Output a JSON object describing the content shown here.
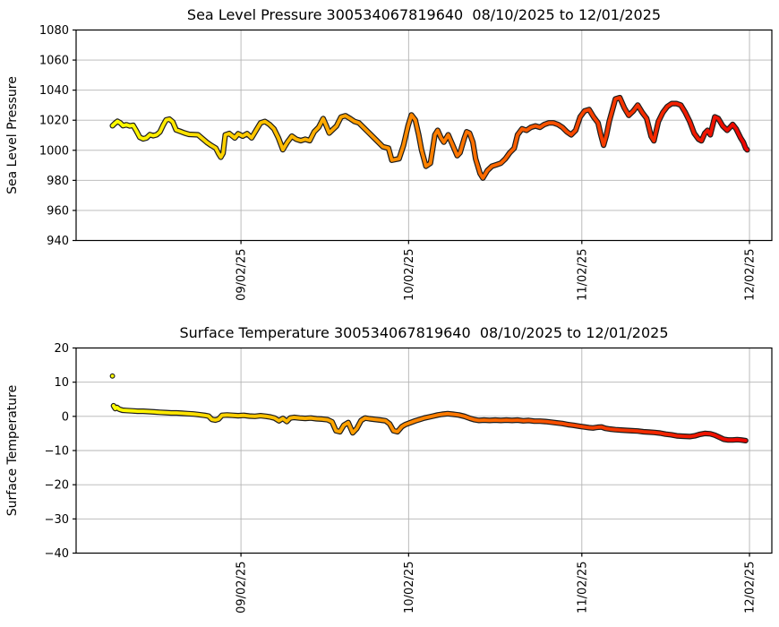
{
  "figure": {
    "background": "#ffffff",
    "grid_color": "#b4b4b4",
    "spine_color": "#000000",
    "marker_edge_color": "#1c1c1c"
  },
  "chart_data": [
    {
      "type": "scatter",
      "series_name": "sea-level-pressure-series",
      "title": "Sea Level Pressure 300534067819640  08/10/2025 to 12/01/2025",
      "ylabel": "Sea Level Pressure",
      "ylim": [
        940,
        1080
      ],
      "yticks": [
        940,
        960,
        980,
        1000,
        1020,
        1040,
        1060,
        1080
      ],
      "x_domain_days": [
        -6.5,
        118
      ],
      "xticks": [
        {
          "day": 23,
          "label": "09/02/25"
        },
        {
          "day": 53,
          "label": "10/02/25"
        },
        {
          "day": 84,
          "label": "11/02/25"
        },
        {
          "day": 114,
          "label": "12/02/25"
        }
      ],
      "grid": true,
      "legend": "none",
      "colormap": {
        "name": "autumn_r",
        "stops": [
          [
            0,
            "#ffff00"
          ],
          [
            0.5,
            "#ff8000"
          ],
          [
            1,
            "#ee0400"
          ]
        ]
      },
      "points": [
        [
          0,
          1016.3
        ],
        [
          0.4,
          1017.8
        ],
        [
          0.9,
          1019.3
        ],
        [
          1.4,
          1018.2
        ],
        [
          1.9,
          1016.4
        ],
        [
          2.5,
          1017.0
        ],
        [
          3.1,
          1016.2
        ],
        [
          3.7,
          1016.6
        ],
        [
          4.3,
          1012.8
        ],
        [
          4.9,
          1008.6
        ],
        [
          5.5,
          1007.6
        ],
        [
          6.1,
          1008.2
        ],
        [
          6.7,
          1010.4
        ],
        [
          7.3,
          1009.7
        ],
        [
          7.9,
          1010.3
        ],
        [
          8.5,
          1012.2
        ],
        [
          9.1,
          1017.0
        ],
        [
          9.6,
          1020.2
        ],
        [
          10.2,
          1020.7
        ],
        [
          10.8,
          1018.8
        ],
        [
          11.4,
          1013.6
        ],
        [
          12.1,
          1012.6
        ],
        [
          12.9,
          1011.5
        ],
        [
          13.7,
          1010.6
        ],
        [
          15.3,
          1010.3
        ],
        [
          16.9,
          1005.3
        ],
        [
          17.7,
          1003.2
        ],
        [
          18.5,
          1001.4
        ],
        [
          19.0,
          997.8
        ],
        [
          19.4,
          995.4
        ],
        [
          19.8,
          998.0
        ],
        [
          20.2,
          1010.3
        ],
        [
          20.9,
          1011.2
        ],
        [
          21.9,
          1008.2
        ],
        [
          22.5,
          1011.0
        ],
        [
          23.3,
          1009.4
        ],
        [
          24.1,
          1011.1
        ],
        [
          24.9,
          1008.3
        ],
        [
          25.7,
          1013.3
        ],
        [
          26.5,
          1018.2
        ],
        [
          27.3,
          1019.2
        ],
        [
          28.1,
          1017.2
        ],
        [
          28.9,
          1014.3
        ],
        [
          29.7,
          1008.3
        ],
        [
          30.5,
          1000.4
        ],
        [
          31.3,
          1005.4
        ],
        [
          32.1,
          1009.4
        ],
        [
          32.9,
          1007.4
        ],
        [
          33.7,
          1006.4
        ],
        [
          34.5,
          1007.4
        ],
        [
          35.3,
          1006.4
        ],
        [
          36.1,
          1012.3
        ],
        [
          36.9,
          1015.3
        ],
        [
          37.7,
          1021.1
        ],
        [
          38.3,
          1016.0
        ],
        [
          38.8,
          1011.5
        ],
        [
          39.3,
          1013.3
        ],
        [
          40.1,
          1016.1
        ],
        [
          40.9,
          1022.1
        ],
        [
          41.7,
          1023.0
        ],
        [
          42.5,
          1021.2
        ],
        [
          43.3,
          1019.2
        ],
        [
          44.1,
          1018.2
        ],
        [
          45.7,
          1012.3
        ],
        [
          47.3,
          1006.4
        ],
        [
          48.4,
          1002.4
        ],
        [
          49.4,
          1001.4
        ],
        [
          50.0,
          993.4
        ],
        [
          51.3,
          994.4
        ],
        [
          52.1,
          1003.4
        ],
        [
          52.9,
          1016.2
        ],
        [
          53.5,
          1023.5
        ],
        [
          54.2,
          1020.2
        ],
        [
          54.8,
          1010.3
        ],
        [
          55.3,
          1000.4
        ],
        [
          56.1,
          989.4
        ],
        [
          56.9,
          991.4
        ],
        [
          57.7,
          1010.3
        ],
        [
          58.2,
          1013.3
        ],
        [
          58.8,
          1008.3
        ],
        [
          59.3,
          1005.4
        ],
        [
          60.1,
          1010.3
        ],
        [
          60.9,
          1003.4
        ],
        [
          61.7,
          996.4
        ],
        [
          62.2,
          998.4
        ],
        [
          63.0,
          1008.3
        ],
        [
          63.4,
          1012.3
        ],
        [
          63.9,
          1011.4
        ],
        [
          64.5,
          1005.4
        ],
        [
          65.0,
          994.3
        ],
        [
          65.8,
          984.5
        ],
        [
          66.3,
          981.5
        ],
        [
          67.1,
          986.5
        ],
        [
          67.9,
          989.4
        ],
        [
          68.7,
          990.4
        ],
        [
          69.5,
          991.4
        ],
        [
          70.3,
          994.3
        ],
        [
          71.1,
          998.4
        ],
        [
          71.9,
          1001.4
        ],
        [
          72.5,
          1010.3
        ],
        [
          73.3,
          1014.3
        ],
        [
          74.1,
          1013.3
        ],
        [
          74.9,
          1015.3
        ],
        [
          75.7,
          1016.2
        ],
        [
          76.5,
          1015.3
        ],
        [
          77.3,
          1017.2
        ],
        [
          78.1,
          1018.2
        ],
        [
          78.9,
          1018.2
        ],
        [
          79.7,
          1017.2
        ],
        [
          80.5,
          1015.3
        ],
        [
          81.3,
          1012.3
        ],
        [
          82.1,
          1010.3
        ],
        [
          82.9,
          1013.3
        ],
        [
          83.7,
          1022.2
        ],
        [
          84.5,
          1026.2
        ],
        [
          85.3,
          1027.1
        ],
        [
          86.1,
          1022.2
        ],
        [
          86.9,
          1018.2
        ],
        [
          87.4,
          1010.3
        ],
        [
          87.9,
          1003.4
        ],
        [
          88.4,
          1010.1
        ],
        [
          88.9,
          1019.2
        ],
        [
          90.0,
          1034.1
        ],
        [
          90.8,
          1035.0
        ],
        [
          91.6,
          1028.2
        ],
        [
          92.4,
          1023.2
        ],
        [
          93.2,
          1026.1
        ],
        [
          94.0,
          1030.1
        ],
        [
          94.8,
          1025.2
        ],
        [
          95.6,
          1021.2
        ],
        [
          96.4,
          1009.3
        ],
        [
          96.9,
          1006.3
        ],
        [
          97.7,
          1019.2
        ],
        [
          98.5,
          1025.2
        ],
        [
          99.3,
          1029.1
        ],
        [
          100.1,
          1031.1
        ],
        [
          100.9,
          1031.1
        ],
        [
          101.7,
          1030.1
        ],
        [
          102.5,
          1025.2
        ],
        [
          103.3,
          1019.2
        ],
        [
          104.1,
          1011.3
        ],
        [
          104.9,
          1007.3
        ],
        [
          105.4,
          1006.3
        ],
        [
          106.0,
          1011.3
        ],
        [
          106.5,
          1013.3
        ],
        [
          107.0,
          1010.3
        ],
        [
          107.8,
          1022.2
        ],
        [
          108.4,
          1021.2
        ],
        [
          109.2,
          1016.2
        ],
        [
          110.0,
          1013.3
        ],
        [
          110.5,
          1015.2
        ],
        [
          111.0,
          1017.2
        ],
        [
          111.6,
          1014.3
        ],
        [
          112.4,
          1008.3
        ],
        [
          112.9,
          1005.3
        ],
        [
          113.3,
          1001.5
        ],
        [
          113.6,
          1000.3
        ]
      ],
      "outliers": []
    },
    {
      "type": "scatter",
      "series_name": "surface-temperature-series",
      "title": "Surface Temperature 300534067819640  08/10/2025 to 12/01/2025",
      "ylabel": "Surface Temperature",
      "ylim": [
        -40,
        20
      ],
      "yticks": [
        -40,
        -30,
        -20,
        -10,
        0,
        10,
        20
      ],
      "x_domain_days": [
        -6.5,
        118
      ],
      "xticks": [
        {
          "day": 23,
          "label": "09/02/25"
        },
        {
          "day": 53,
          "label": "10/02/25"
        },
        {
          "day": 84,
          "label": "11/02/25"
        },
        {
          "day": 114,
          "label": "12/02/25"
        }
      ],
      "grid": true,
      "legend": "none",
      "colormap": {
        "name": "autumn_r",
        "stops": [
          [
            0,
            "#ffff00"
          ],
          [
            0.5,
            "#ff8000"
          ],
          [
            1,
            "#ee0400"
          ]
        ]
      },
      "points": [
        [
          0.2,
          3.1
        ],
        [
          0.5,
          2.3
        ],
        [
          0.8,
          2.6
        ],
        [
          1.2,
          2.1
        ],
        [
          1.8,
          1.8
        ],
        [
          2.5,
          1.7
        ],
        [
          3.5,
          1.6
        ],
        [
          4.5,
          1.5
        ],
        [
          5.5,
          1.5
        ],
        [
          6.5,
          1.4
        ],
        [
          7.5,
          1.3
        ],
        [
          8.5,
          1.2
        ],
        [
          9.5,
          1.1
        ],
        [
          10.5,
          1.0
        ],
        [
          11.5,
          1.0
        ],
        [
          12.5,
          0.9
        ],
        [
          13.5,
          0.8
        ],
        [
          14.5,
          0.7
        ],
        [
          15.5,
          0.5
        ],
        [
          16.5,
          0.3
        ],
        [
          17.2,
          0.1
        ],
        [
          17.8,
          -0.9
        ],
        [
          18.4,
          -1.1
        ],
        [
          19.0,
          -0.8
        ],
        [
          19.6,
          0.3
        ],
        [
          20.5,
          0.4
        ],
        [
          21.5,
          0.3
        ],
        [
          22.5,
          0.2
        ],
        [
          23.5,
          0.3
        ],
        [
          24.5,
          0.1
        ],
        [
          25.5,
          0.0
        ],
        [
          26.5,
          0.2
        ],
        [
          27.5,
          0.0
        ],
        [
          28.3,
          -0.2
        ],
        [
          29.0,
          -0.5
        ],
        [
          29.8,
          -1.3
        ],
        [
          30.5,
          -0.6
        ],
        [
          31.2,
          -1.5
        ],
        [
          31.8,
          -0.5
        ],
        [
          32.5,
          -0.3
        ],
        [
          33.5,
          -0.5
        ],
        [
          34.5,
          -0.6
        ],
        [
          35.5,
          -0.5
        ],
        [
          36.5,
          -0.7
        ],
        [
          37.5,
          -0.8
        ],
        [
          38.5,
          -1.0
        ],
        [
          39.3,
          -1.6
        ],
        [
          40.0,
          -4.2
        ],
        [
          40.7,
          -4.5
        ],
        [
          41.4,
          -2.6
        ],
        [
          42.2,
          -1.8
        ],
        [
          43.0,
          -4.8
        ],
        [
          43.7,
          -3.6
        ],
        [
          44.5,
          -1.2
        ],
        [
          45.2,
          -0.5
        ],
        [
          46.0,
          -0.7
        ],
        [
          47.0,
          -0.9
        ],
        [
          48.0,
          -1.1
        ],
        [
          48.9,
          -1.3
        ],
        [
          49.6,
          -2.2
        ],
        [
          50.3,
          -4.2
        ],
        [
          51.0,
          -4.5
        ],
        [
          51.8,
          -3.0
        ],
        [
          52.4,
          -2.4
        ],
        [
          53.4,
          -1.8
        ],
        [
          54.2,
          -1.3
        ],
        [
          55.0,
          -0.9
        ],
        [
          55.8,
          -0.5
        ],
        [
          56.6,
          -0.2
        ],
        [
          57.4,
          0.1
        ],
        [
          58.2,
          0.4
        ],
        [
          59.0,
          0.6
        ],
        [
          60.0,
          0.8
        ],
        [
          61.0,
          0.6
        ],
        [
          62.0,
          0.4
        ],
        [
          63.0,
          0.0
        ],
        [
          64.0,
          -0.6
        ],
        [
          64.8,
          -1.0
        ],
        [
          65.6,
          -1.2
        ],
        [
          66.5,
          -1.1
        ],
        [
          67.5,
          -1.2
        ],
        [
          68.5,
          -1.1
        ],
        [
          69.5,
          -1.2
        ],
        [
          70.5,
          -1.1
        ],
        [
          71.5,
          -1.2
        ],
        [
          72.5,
          -1.1
        ],
        [
          73.5,
          -1.3
        ],
        [
          74.5,
          -1.2
        ],
        [
          75.5,
          -1.4
        ],
        [
          76.5,
          -1.4
        ],
        [
          77.5,
          -1.5
        ],
        [
          78.5,
          -1.7
        ],
        [
          79.5,
          -1.9
        ],
        [
          80.5,
          -2.1
        ],
        [
          81.5,
          -2.4
        ],
        [
          82.5,
          -2.6
        ],
        [
          83.6,
          -2.9
        ],
        [
          84.5,
          -3.1
        ],
        [
          85.3,
          -3.3
        ],
        [
          86.0,
          -3.4
        ],
        [
          86.8,
          -3.2
        ],
        [
          87.5,
          -3.1
        ],
        [
          88.2,
          -3.5
        ],
        [
          89.0,
          -3.7
        ],
        [
          90.0,
          -3.9
        ],
        [
          91.0,
          -4.0
        ],
        [
          92.0,
          -4.1
        ],
        [
          93.0,
          -4.2
        ],
        [
          94.0,
          -4.3
        ],
        [
          95.0,
          -4.5
        ],
        [
          96.0,
          -4.6
        ],
        [
          97.0,
          -4.7
        ],
        [
          98.0,
          -4.9
        ],
        [
          99.0,
          -5.2
        ],
        [
          100.0,
          -5.4
        ],
        [
          101.0,
          -5.7
        ],
        [
          102.0,
          -5.8
        ],
        [
          103.3,
          -5.9
        ],
        [
          104.2,
          -5.7
        ],
        [
          105.0,
          -5.3
        ],
        [
          106.0,
          -5.0
        ],
        [
          107.0,
          -5.1
        ],
        [
          107.8,
          -5.5
        ],
        [
          108.6,
          -6.1
        ],
        [
          109.4,
          -6.7
        ],
        [
          110.2,
          -6.9
        ],
        [
          111.0,
          -6.9
        ],
        [
          111.8,
          -6.8
        ],
        [
          112.5,
          -6.9
        ],
        [
          113.3,
          -7.1
        ]
      ],
      "outliers": [
        [
          0,
          11.8
        ]
      ]
    }
  ]
}
